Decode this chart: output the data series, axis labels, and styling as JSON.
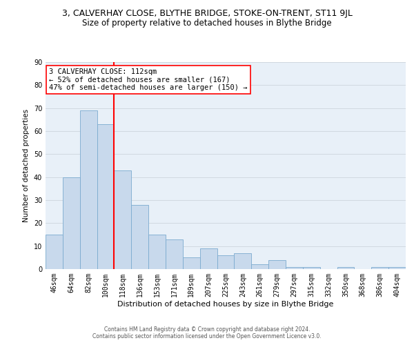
{
  "title": "3, CALVERHAY CLOSE, BLYTHE BRIDGE, STOKE-ON-TRENT, ST11 9JL",
  "subtitle": "Size of property relative to detached houses in Blythe Bridge",
  "xlabel": "Distribution of detached houses by size in Blythe Bridge",
  "ylabel": "Number of detached properties",
  "categories": [
    "46sqm",
    "64sqm",
    "82sqm",
    "100sqm",
    "118sqm",
    "136sqm",
    "153sqm",
    "171sqm",
    "189sqm",
    "207sqm",
    "225sqm",
    "243sqm",
    "261sqm",
    "279sqm",
    "297sqm",
    "315sqm",
    "332sqm",
    "350sqm",
    "368sqm",
    "386sqm",
    "404sqm"
  ],
  "values": [
    15,
    40,
    69,
    63,
    43,
    28,
    15,
    13,
    5,
    9,
    6,
    7,
    2,
    4,
    1,
    1,
    0,
    1,
    0,
    1,
    1
  ],
  "bar_color": "#c8d9ec",
  "bar_edge_color": "#7aaacf",
  "vline_color": "red",
  "annotation_text": "3 CALVERHAY CLOSE: 112sqm\n← 52% of detached houses are smaller (167)\n47% of semi-detached houses are larger (150) →",
  "annotation_box_color": "white",
  "annotation_box_edge_color": "red",
  "ylim": [
    0,
    90
  ],
  "yticks": [
    0,
    10,
    20,
    30,
    40,
    50,
    60,
    70,
    80,
    90
  ],
  "grid_color": "#d0d8e0",
  "background_color": "#e8f0f8",
  "footer_line1": "Contains HM Land Registry data © Crown copyright and database right 2024.",
  "footer_line2": "Contains public sector information licensed under the Open Government Licence v3.0.",
  "title_fontsize": 9,
  "subtitle_fontsize": 8.5,
  "xlabel_fontsize": 8,
  "ylabel_fontsize": 7.5,
  "tick_fontsize": 7,
  "annotation_fontsize": 7.5,
  "footer_fontsize": 5.5
}
